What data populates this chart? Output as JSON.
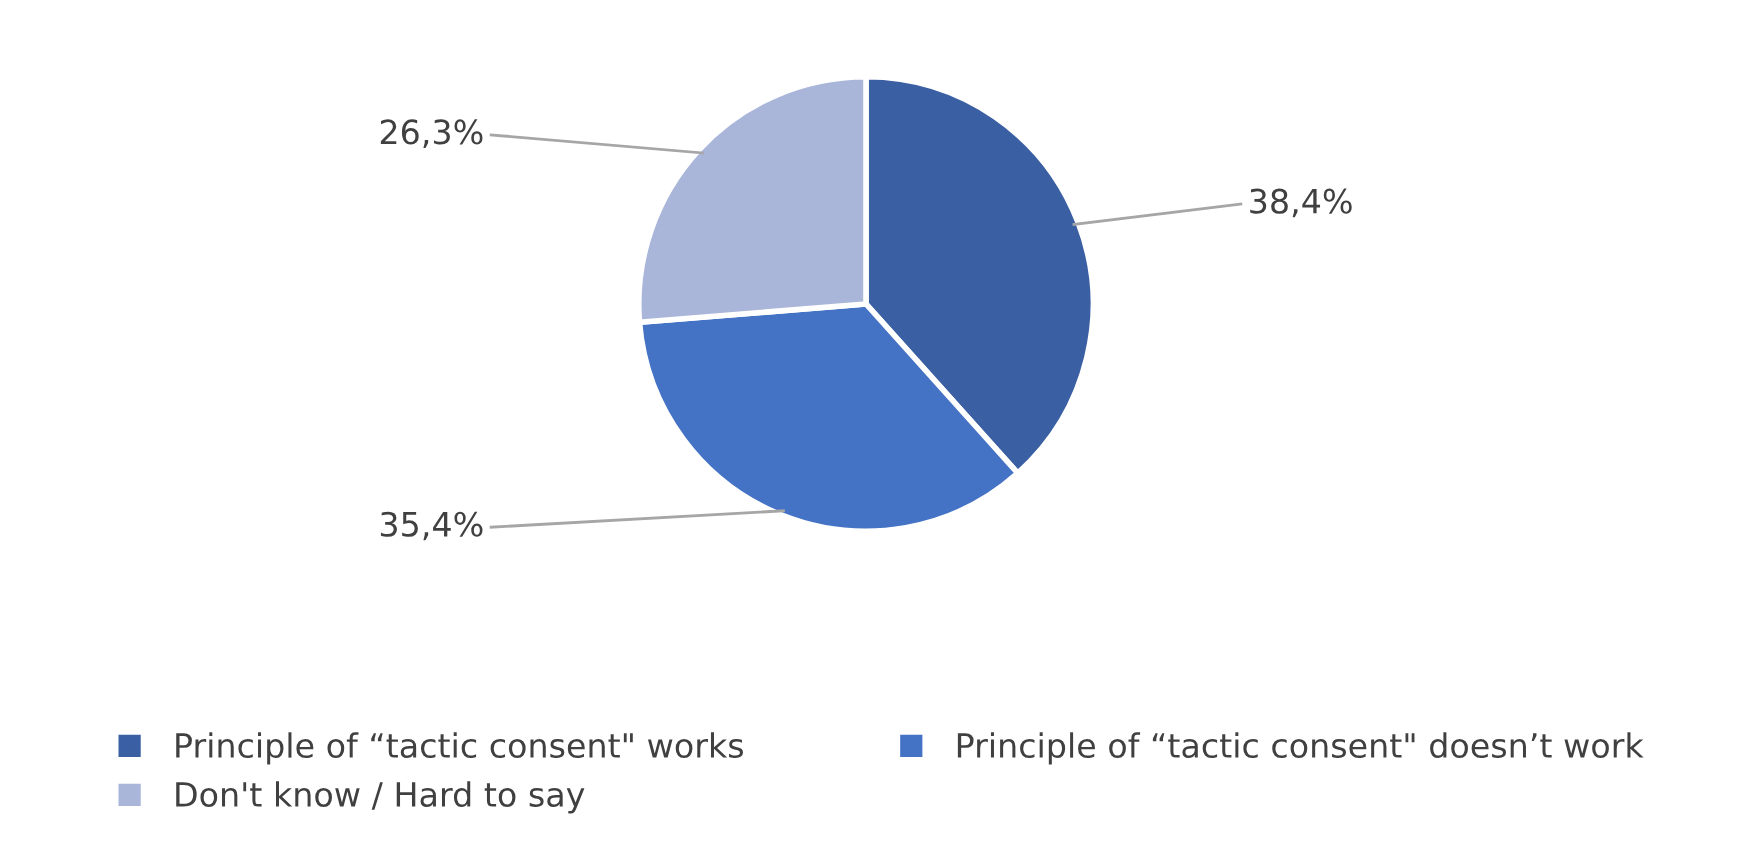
{
  "chart_data": {
    "type": "pie",
    "categories": [
      "Principle of “tactic consent\" works",
      "Principle of “tactic consent\" doesn’t work",
      "Don't know / Hard to say"
    ],
    "values": [
      38.4,
      35.4,
      26.3
    ],
    "value_labels": [
      "38,4%",
      "35,4%",
      "26,3%"
    ],
    "colors": [
      "#3a5fa3",
      "#4472c4",
      "#a9b6da"
    ],
    "legend": "bottom"
  }
}
